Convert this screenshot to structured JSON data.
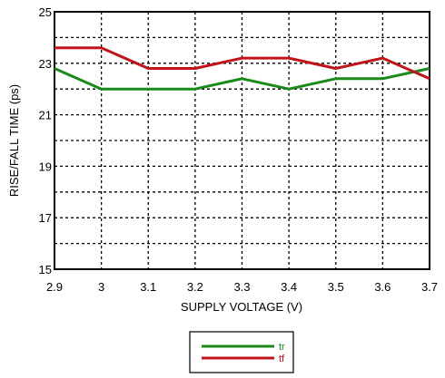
{
  "chart_data": {
    "type": "line",
    "title": "",
    "xlabel": "SUPPLY VOLTAGE (V)",
    "ylabel": "RISE/FALL TIME (ps)",
    "xlim": [
      2.9,
      3.7
    ],
    "ylim": [
      15,
      25
    ],
    "x_ticks": [
      "2.9",
      "3",
      "3.1",
      "3.2",
      "3.3",
      "3.4",
      "3.5",
      "3.6",
      "3.7"
    ],
    "y_ticks": [
      "15",
      "17",
      "19",
      "21",
      "23",
      "25"
    ],
    "grid": true,
    "legend_position": "bottom-center",
    "series": [
      {
        "name": "tr",
        "color": "#1a8a1a",
        "x": [
          2.9,
          3.0,
          3.1,
          3.2,
          3.3,
          3.4,
          3.5,
          3.6,
          3.7
        ],
        "values": [
          22.8,
          22.0,
          22.0,
          22.0,
          22.4,
          22.0,
          22.4,
          22.4,
          22.8
        ]
      },
      {
        "name": "tf",
        "color": "#c0141b",
        "x": [
          2.9,
          3.0,
          3.1,
          3.2,
          3.3,
          3.4,
          3.5,
          3.6,
          3.7
        ],
        "values": [
          23.6,
          23.6,
          22.8,
          22.8,
          23.2,
          23.2,
          22.8,
          23.2,
          22.4
        ]
      }
    ]
  }
}
